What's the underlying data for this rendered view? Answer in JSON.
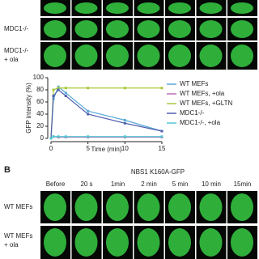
{
  "panel_a": {
    "rows": [
      [
        "MDC1-/-"
      ],
      [
        "MDC1-/-",
        "+ ola"
      ]
    ]
  },
  "chart_data": {
    "type": "line",
    "ylabel": "GFP intensity (%)",
    "xlabel": "Time (min)",
    "x": [
      0,
      0.33,
      1,
      2,
      5,
      10,
      15
    ],
    "xlim": [
      0,
      15
    ],
    "xticks": [
      0,
      5,
      10,
      15
    ],
    "ylim": [
      0,
      100
    ],
    "yticks": [
      0,
      20,
      40,
      60,
      80,
      100
    ],
    "series": [
      {
        "name": "WT MEFs",
        "color": "#5aa9d8",
        "values": [
          0,
          65,
          85,
          75,
          45,
          30,
          12
        ]
      },
      {
        "name": "WT MEFs, +ola",
        "color": "#c070b8",
        "values": [
          0,
          3,
          2,
          2,
          2,
          2,
          2
        ]
      },
      {
        "name": "WT MEFs, +GLTN",
        "color": "#a8c83a",
        "values": [
          0,
          80,
          83,
          83,
          83,
          83,
          83
        ]
      },
      {
        "name": "MDC1-/-",
        "color": "#5060b0",
        "values": [
          0,
          70,
          80,
          70,
          40,
          25,
          12
        ]
      },
      {
        "name": "MDC1-/-, +ola",
        "color": "#50c8d0",
        "values": [
          0,
          3,
          3,
          3,
          3,
          3,
          3
        ]
      }
    ]
  },
  "panel_b": {
    "letter": "B",
    "title": "NBS1 K160A-GFP",
    "columns": [
      "Before",
      "20 s",
      "1min",
      "2 min",
      "5 min",
      "10 min",
      "15min"
    ],
    "rows": [
      [
        "WT MEFs"
      ],
      [
        "WT MEFs",
        "+ ola"
      ]
    ]
  }
}
